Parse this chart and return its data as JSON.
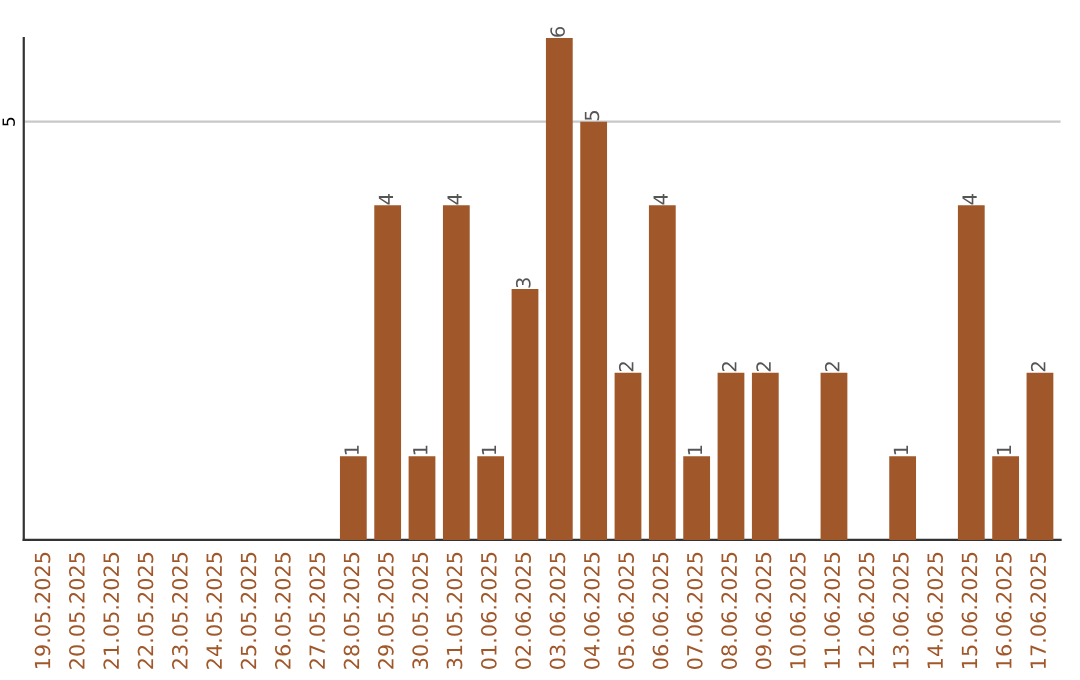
{
  "chart_data": {
    "type": "bar",
    "categories": [
      "19.05.2025",
      "20.05.2025",
      "21.05.2025",
      "22.05.2025",
      "23.05.2025",
      "24.05.2025",
      "25.05.2025",
      "26.05.2025",
      "27.05.2025",
      "28.05.2025",
      "29.05.2025",
      "30.05.2025",
      "31.05.2025",
      "01.06.2025",
      "02.06.2025",
      "03.06.2025",
      "04.06.2025",
      "05.06.2025",
      "06.06.2025",
      "07.06.2025",
      "08.06.2025",
      "09.06.2025",
      "10.06.2025",
      "11.06.2025",
      "12.06.2025",
      "13.06.2025",
      "14.06.2025",
      "15.06.2025",
      "16.06.2025",
      "17.06.2025"
    ],
    "values": [
      0,
      0,
      0,
      0,
      0,
      0,
      0,
      0,
      0,
      1,
      4,
      1,
      4,
      1,
      3,
      6,
      5,
      2,
      4,
      1,
      2,
      2,
      0,
      2,
      0,
      1,
      0,
      4,
      1,
      2
    ],
    "value_labels": [
      null,
      null,
      null,
      null,
      null,
      null,
      null,
      null,
      null,
      "1",
      "4",
      "1",
      "4",
      "1",
      "3",
      "6",
      "5",
      "2",
      "4",
      "1",
      "2",
      "2",
      null,
      "2",
      null,
      "1",
      null,
      "4",
      "1",
      "2"
    ],
    "color": "#a0572a",
    "ylim": [
      0,
      6
    ],
    "yticks": [
      5
    ],
    "grid": "y"
  }
}
